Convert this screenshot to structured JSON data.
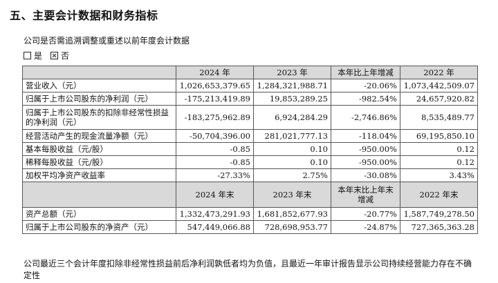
{
  "section_title": "五、主要会计数据和财务指标",
  "restatement_question": "公司是否需追溯调整或重述以前年度会计数据",
  "choices": {
    "yes_label": "是",
    "no_label": "否",
    "selected": "否"
  },
  "table1": {
    "headers": [
      "",
      "2024 年",
      "2023 年",
      "本年比上年增减",
      "2022 年"
    ],
    "rows": [
      {
        "label": "营业收入（元）",
        "v2024": "1,026,653,379.65",
        "v2023": "1,284,321,988.71",
        "change": "-20.06%",
        "v2022": "1,073,442,509.07"
      },
      {
        "label": "归属于上市公司股东的净利润（元）",
        "v2024": "-175,213,419.89",
        "v2023": "19,853,289.25",
        "change": "-982.54%",
        "v2022": "24,657,920.82"
      },
      {
        "label": "归属于上市公司股东的扣除非经常性损益的净利润（元）",
        "v2024": "-183,275,962.89",
        "v2023": "6,924,284.29",
        "change": "-2,746.86%",
        "v2022": "8,535,489.77"
      },
      {
        "label": "经营活动产生的现金流量净额（元）",
        "v2024": "-50,704,396.00",
        "v2023": "281,021,777.13",
        "change": "-118.04%",
        "v2022": "69,195,850.10"
      },
      {
        "label": "基本每股收益（元/股）",
        "v2024": "-0.85",
        "v2023": "0.10",
        "change": "-950.00%",
        "v2022": "0.12"
      },
      {
        "label": "稀释每股收益（元/股）",
        "v2024": "-0.85",
        "v2023": "0.10",
        "change": "-950.00%",
        "v2022": "0.12"
      },
      {
        "label": "加权平均净资产收益率",
        "v2024": "-27.33%",
        "v2023": "2.75%",
        "change": "-30.08%",
        "v2022": "3.43%"
      }
    ]
  },
  "table2": {
    "headers": [
      "",
      "2024 年末",
      "2023 年末",
      "本年末比上年末增减",
      "2022 年末"
    ],
    "rows": [
      {
        "label": "资产总额（元）",
        "v2024": "1,332,473,291.93",
        "v2023": "1,681,852,677.93",
        "change": "-20.77%",
        "v2022": "1,587,749,278.50"
      },
      {
        "label": "归属于上市公司股东的净资产（元）",
        "v2024": "547,449,066.88",
        "v2023": "728,698,953.77",
        "change": "-24.87%",
        "v2022": "727,365,363.28"
      }
    ]
  },
  "footnote": "公司最近三个会计年度扣除非经常性损益前后净利润孰低者均为负值，且最近一年审计报告显示公司持续经营能力存在不确定性"
}
